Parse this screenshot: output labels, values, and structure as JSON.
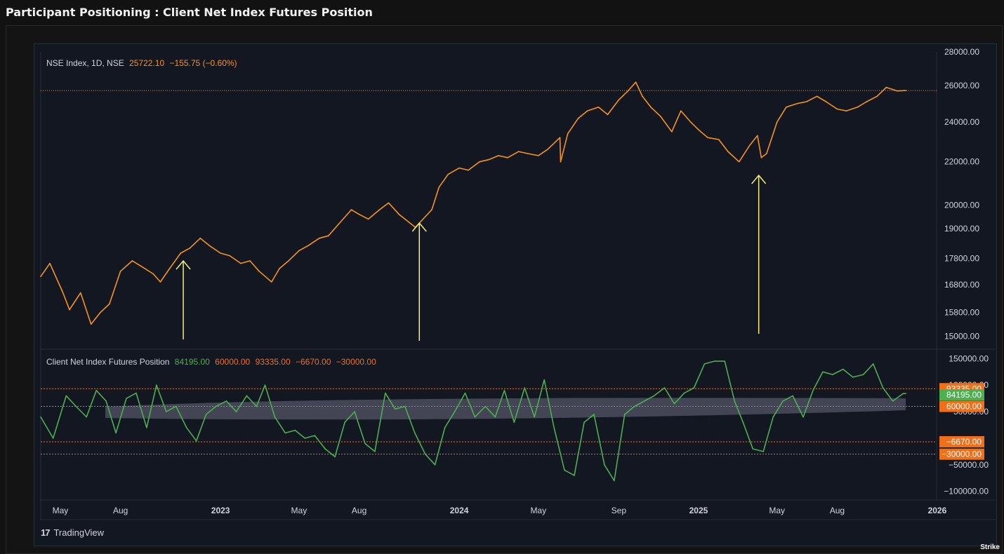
{
  "page": {
    "title": "Participant Positioning : Client Net Index Futures Position",
    "watermark": "Strike"
  },
  "tradingview": {
    "label": "TradingView"
  },
  "colors": {
    "index_line": "#f7931a",
    "client_line": "#4caf50",
    "level_line": "#f0701a",
    "annotation_arrow": "#f5f07a",
    "band": "#6b6c80",
    "background": "#131722"
  },
  "upper_legend": {
    "symbol": "NSE Index, 1D, NSE",
    "last": "25722.10",
    "change": "−155.75 (−0.60%)"
  },
  "lower_legend": {
    "name": "Client Net Index Futures Position",
    "v1": "84195.00",
    "v2": "60000.00",
    "v3": "93335.00",
    "v4": "−6670.00",
    "v5": "−30000.00"
  },
  "chart_data": [
    {
      "type": "line",
      "series": [
        {
          "name": "NSE Index, 1D, NSE"
        }
      ],
      "y_scale": "log",
      "ylim": [
        14600,
        28000
      ],
      "y_ticks": [
        "28000.00",
        "26000.00",
        "24000.00",
        "22000.00",
        "20000.00",
        "19000.00",
        "17800.00",
        "16800.00",
        "15800.00",
        "15000.00"
      ],
      "x_ticks": [
        "May",
        "Aug",
        "2023",
        "May",
        "Aug",
        "2024",
        "May",
        "Sep",
        "2025",
        "May",
        "Aug",
        "2026"
      ],
      "x": [
        "2022-04-01",
        "2022-04-15",
        "2022-05-05",
        "2022-05-15",
        "2022-06-01",
        "2022-06-17",
        "2022-07-01",
        "2022-07-15",
        "2022-08-01",
        "2022-08-19",
        "2022-09-01",
        "2022-09-20",
        "2022-10-01",
        "2022-10-15",
        "2022-11-01",
        "2022-11-15",
        "2022-12-01",
        "2022-12-15",
        "2023-01-01",
        "2023-01-15",
        "2023-02-01",
        "2023-02-15",
        "2023-03-01",
        "2023-03-20",
        "2023-04-01",
        "2023-04-15",
        "2023-05-01",
        "2023-05-15",
        "2023-06-01",
        "2023-06-15",
        "2023-07-01",
        "2023-07-20",
        "2023-08-01",
        "2023-08-15",
        "2023-09-01",
        "2023-09-15",
        "2023-10-01",
        "2023-10-26",
        "2023-11-10",
        "2023-11-20",
        "2023-12-01",
        "2023-12-15",
        "2024-01-01",
        "2024-01-15",
        "2024-02-01",
        "2024-02-15",
        "2024-03-01",
        "2024-03-15",
        "2024-04-01",
        "2024-04-15",
        "2024-05-01",
        "2024-05-15",
        "2024-06-03",
        "2024-06-04",
        "2024-06-15",
        "2024-07-01",
        "2024-07-15",
        "2024-08-01",
        "2024-08-15",
        "2024-09-01",
        "2024-09-15",
        "2024-09-27",
        "2024-10-07",
        "2024-10-20",
        "2024-11-04",
        "2024-11-21",
        "2024-12-05",
        "2024-12-20",
        "2025-01-01",
        "2025-01-15",
        "2025-02-01",
        "2025-02-15",
        "2025-03-04",
        "2025-03-20",
        "2025-04-01",
        "2025-04-07",
        "2025-04-15",
        "2025-05-01",
        "2025-05-15",
        "2025-06-01",
        "2025-06-15",
        "2025-07-01",
        "2025-07-15",
        "2025-08-01",
        "2025-08-15",
        "2025-09-01",
        "2025-09-15",
        "2025-10-01",
        "2025-10-15",
        "2025-11-01",
        "2025-11-14"
      ],
      "y": [
        17100,
        17600,
        16500,
        15900,
        16500,
        15400,
        15800,
        16100,
        17300,
        17700,
        17500,
        17200,
        16900,
        17400,
        18000,
        18200,
        18600,
        18300,
        18000,
        17900,
        17600,
        17700,
        17300,
        16900,
        17400,
        17700,
        18100,
        18300,
        18600,
        18700,
        19200,
        19800,
        19600,
        19400,
        19800,
        20100,
        19600,
        19050,
        19500,
        19800,
        20800,
        21400,
        21700,
        21600,
        22000,
        22100,
        22300,
        22200,
        22500,
        22400,
        22300,
        22600,
        23200,
        22000,
        23400,
        24200,
        24600,
        24800,
        24400,
        25200,
        25700,
        26200,
        25400,
        24800,
        24300,
        23500,
        24600,
        24000,
        23600,
        23200,
        23100,
        22500,
        22000,
        22800,
        23300,
        22200,
        22400,
        24000,
        24800,
        25000,
        25100,
        25400,
        25100,
        24700,
        24600,
        24800,
        25100,
        25400,
        25900,
        25700,
        25722
      ]
    },
    {
      "type": "line",
      "series": [
        {
          "name": "Client Net Index Futures Position"
        }
      ],
      "ylim": [
        -115000,
        165000
      ],
      "y_ticks": [
        "150000.00",
        "100000.00",
        "50000.00",
        "−50000.00",
        "−100000.00"
      ],
      "levels": [
        93335,
        60000,
        -6670,
        -30000
      ],
      "last_value": 84195,
      "x": [
        "2022-04-01",
        "2022-04-20",
        "2022-05-10",
        "2022-05-25",
        "2022-06-10",
        "2022-06-25",
        "2022-07-10",
        "2022-07-25",
        "2022-08-10",
        "2022-08-25",
        "2022-09-10",
        "2022-09-25",
        "2022-10-10",
        "2022-10-25",
        "2022-11-10",
        "2022-11-25",
        "2022-12-10",
        "2022-12-25",
        "2023-01-10",
        "2023-01-25",
        "2023-02-10",
        "2023-02-25",
        "2023-03-10",
        "2023-03-25",
        "2023-04-10",
        "2023-04-25",
        "2023-05-10",
        "2023-05-25",
        "2023-06-10",
        "2023-06-25",
        "2023-07-10",
        "2023-07-25",
        "2023-08-10",
        "2023-08-25",
        "2023-09-10",
        "2023-09-25",
        "2023-10-10",
        "2023-10-25",
        "2023-11-10",
        "2023-11-25",
        "2023-12-10",
        "2023-12-25",
        "2024-01-10",
        "2024-01-25",
        "2024-02-10",
        "2024-02-25",
        "2024-03-10",
        "2024-03-25",
        "2024-04-10",
        "2024-04-25",
        "2024-05-10",
        "2024-05-25",
        "2024-06-10",
        "2024-06-25",
        "2024-07-10",
        "2024-07-25",
        "2024-08-10",
        "2024-08-25",
        "2024-09-10",
        "2024-09-25",
        "2024-10-10",
        "2024-10-25",
        "2024-11-10",
        "2024-11-25",
        "2024-12-10",
        "2024-12-25",
        "2025-01-10",
        "2025-01-25",
        "2025-02-10",
        "2025-02-25",
        "2025-03-10",
        "2025-03-25",
        "2025-04-10",
        "2025-04-25",
        "2025-05-10",
        "2025-05-25",
        "2025-06-10",
        "2025-06-25",
        "2025-07-10",
        "2025-07-25",
        "2025-08-10",
        "2025-08-25",
        "2025-09-10",
        "2025-09-25",
        "2025-10-10",
        "2025-10-25",
        "2025-11-10",
        "2025-11-14"
      ],
      "y": [
        40000,
        0,
        80000,
        60000,
        40000,
        90000,
        70000,
        10000,
        75000,
        85000,
        20000,
        100000,
        50000,
        60000,
        20000,
        -5000,
        45000,
        60000,
        70000,
        50000,
        80000,
        60000,
        100000,
        40000,
        10000,
        15000,
        0,
        5000,
        -20000,
        -35000,
        30000,
        50000,
        -10000,
        -25000,
        85000,
        55000,
        60000,
        10000,
        -30000,
        -50000,
        20000,
        50000,
        85000,
        40000,
        60000,
        40000,
        90000,
        30000,
        95000,
        40000,
        110000,
        20000,
        -60000,
        -70000,
        30000,
        45000,
        -50000,
        -80000,
        45000,
        60000,
        70000,
        80000,
        95000,
        65000,
        85000,
        95000,
        140000,
        145000,
        145000,
        70000,
        30000,
        -20000,
        -25000,
        40000,
        70000,
        80000,
        40000,
        90000,
        125000,
        120000,
        130000,
        115000,
        120000,
        140000,
        95000,
        70000,
        84195,
        84195
      ]
    }
  ]
}
